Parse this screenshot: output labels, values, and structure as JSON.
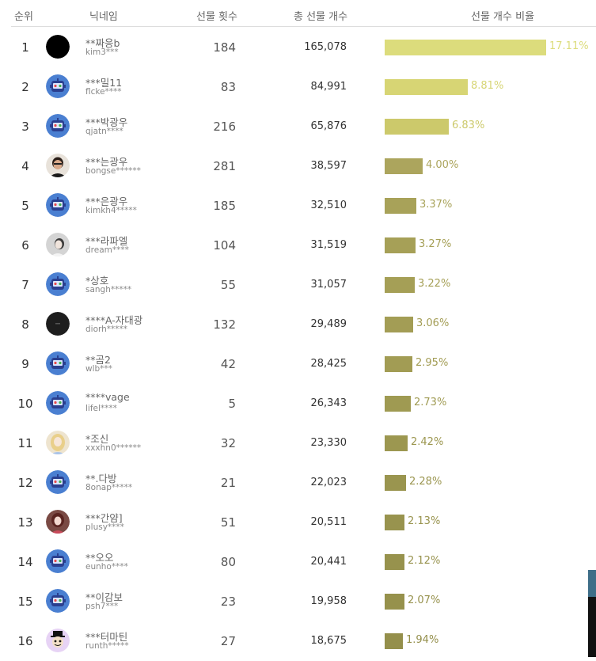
{
  "header": {
    "rank": "순위",
    "nickname": "닉네임",
    "gift_count": "선물 횟수",
    "total_gifts": "총 선물 개수",
    "ratio": "선물 개수 비율"
  },
  "rows": [
    {
      "rank": "1",
      "nick": "**짜응b",
      "uid": "kim3***",
      "count": "184",
      "total": "165,078",
      "pct": "17.11%",
      "ratio": 0.1711,
      "color": "#dcdc7c",
      "avatar": "black"
    },
    {
      "rank": "2",
      "nick": "***밀11",
      "uid": "flcke****",
      "count": "83",
      "total": "84,991",
      "pct": "8.81%",
      "ratio": 0.0881,
      "color": "#d7d574",
      "avatar": "robot"
    },
    {
      "rank": "3",
      "nick": "***박광우",
      "uid": "qjatn****",
      "count": "216",
      "total": "65,876",
      "pct": "6.83%",
      "ratio": 0.0683,
      "color": "#ccc96b",
      "avatar": "robot"
    },
    {
      "rank": "4",
      "nick": "***는광우",
      "uid": "bongse******",
      "count": "281",
      "total": "38,597",
      "pct": "4.00%",
      "ratio": 0.04,
      "color": "#aca55d",
      "avatar": "person"
    },
    {
      "rank": "5",
      "nick": "***은광우",
      "uid": "kimkh4*****",
      "count": "185",
      "total": "32,510",
      "pct": "3.37%",
      "ratio": 0.0337,
      "color": "#a8a259",
      "avatar": "robot"
    },
    {
      "rank": "6",
      "nick": "***라파엘",
      "uid": "dream****",
      "count": "104",
      "total": "31,519",
      "pct": "3.27%",
      "ratio": 0.0327,
      "color": "#a6a057",
      "avatar": "photo"
    },
    {
      "rank": "7",
      "nick": "*상호",
      "uid": "sangh*****",
      "count": "55",
      "total": "31,057",
      "pct": "3.22%",
      "ratio": 0.0322,
      "color": "#a59f56",
      "avatar": "robot"
    },
    {
      "rank": "8",
      "nick": "****A-자대광",
      "uid": "diorh*****",
      "count": "132",
      "total": "29,489",
      "pct": "3.06%",
      "ratio": 0.0306,
      "color": "#a39d55",
      "avatar": "dark"
    },
    {
      "rank": "9",
      "nick": "**곰2",
      "uid": "wlb***",
      "count": "42",
      "total": "28,425",
      "pct": "2.95%",
      "ratio": 0.0295,
      "color": "#a29c54",
      "avatar": "robot"
    },
    {
      "rank": "10",
      "nick": "****vage",
      "uid": "lifel****",
      "count": "5",
      "total": "26,343",
      "pct": "2.73%",
      "ratio": 0.0273,
      "color": "#9f9a52",
      "avatar": "robot"
    },
    {
      "rank": "11",
      "nick": "*조신",
      "uid": "xxxhn0******",
      "count": "32",
      "total": "23,330",
      "pct": "2.42%",
      "ratio": 0.0242,
      "color": "#9c9750",
      "avatar": "blonde"
    },
    {
      "rank": "12",
      "nick": "**.다방",
      "uid": "8onap*****",
      "count": "21",
      "total": "22,023",
      "pct": "2.28%",
      "ratio": 0.0228,
      "color": "#9a954f",
      "avatar": "robot"
    },
    {
      "rank": "13",
      "nick": "***간얌]",
      "uid": "plusy****",
      "count": "51",
      "total": "20,511",
      "pct": "2.13%",
      "ratio": 0.0213,
      "color": "#98934e",
      "avatar": "redhead"
    },
    {
      "rank": "14",
      "nick": "**오오",
      "uid": "eunho****",
      "count": "80",
      "total": "20,441",
      "pct": "2.12%",
      "ratio": 0.0212,
      "color": "#97924d",
      "avatar": "robot"
    },
    {
      "rank": "15",
      "nick": "**이감보",
      "uid": "psh7***",
      "count": "23",
      "total": "19,958",
      "pct": "2.07%",
      "ratio": 0.0207,
      "color": "#96914c",
      "avatar": "robot"
    },
    {
      "rank": "16",
      "nick": "***터마틴",
      "uid": "runth*****",
      "count": "27",
      "total": "18,675",
      "pct": "1.94%",
      "ratio": 0.0194,
      "color": "#948f4b",
      "avatar": "cartoon"
    }
  ]
}
